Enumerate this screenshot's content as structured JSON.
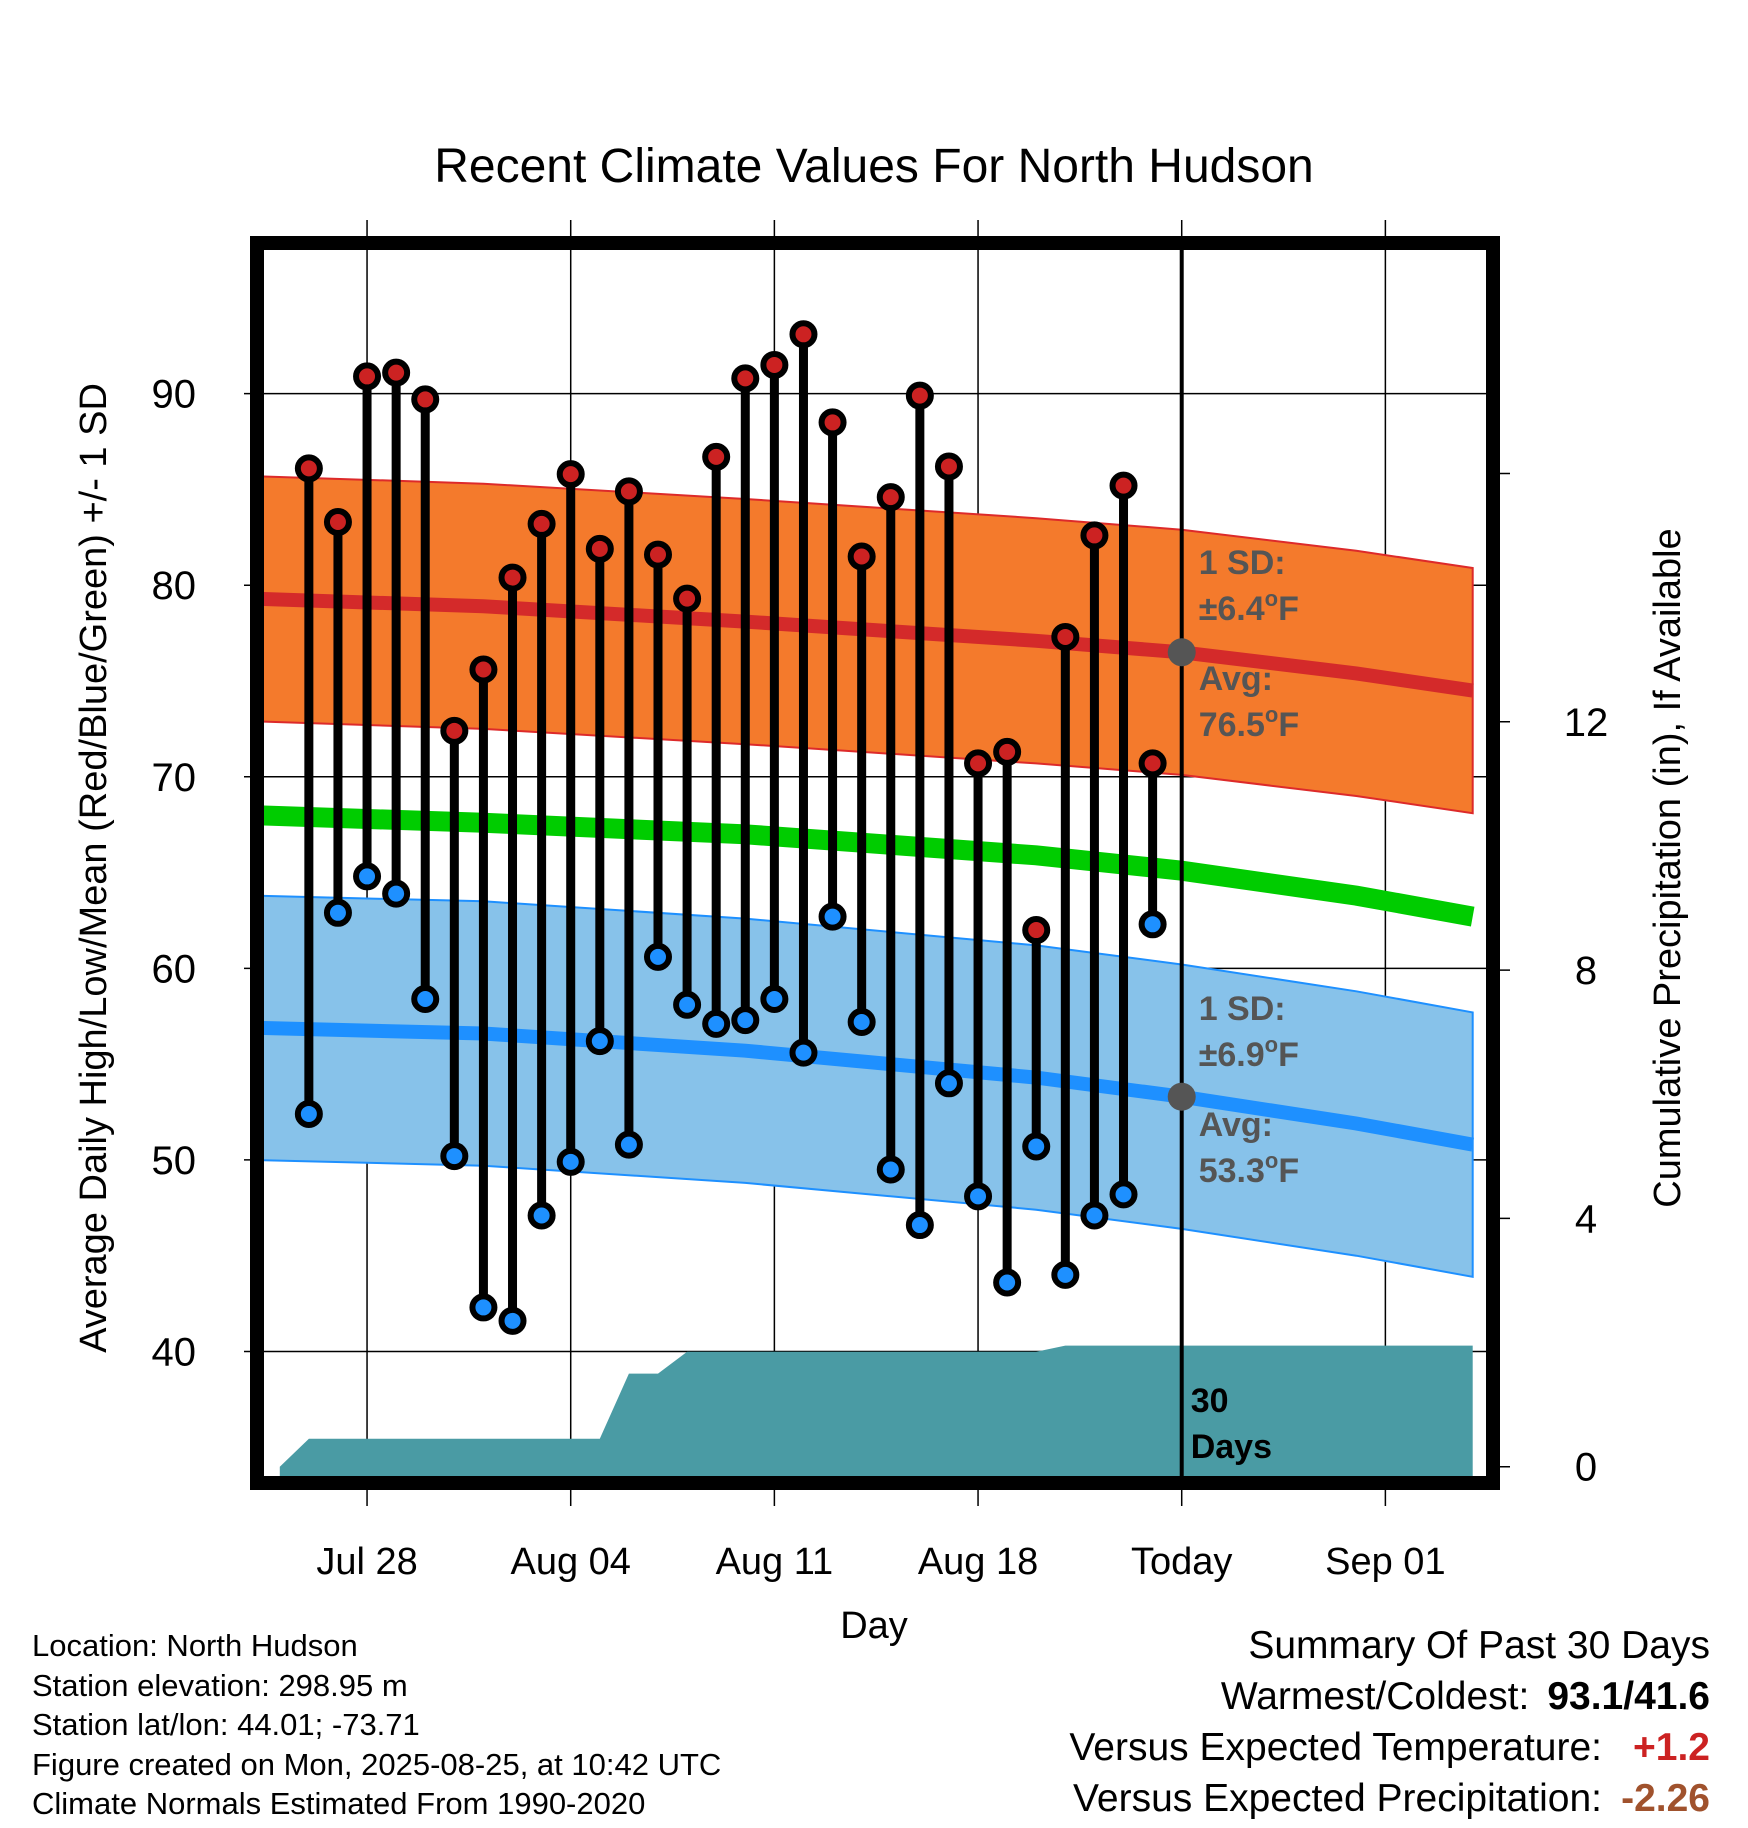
{
  "chart_data": {
    "type": "line",
    "title": "Recent Climate Values For North Hudson",
    "xlabel": "Day",
    "ylabel": "Average Daily High/Low/Mean (Red/Blue/Green) +/- 1 SD",
    "y2label": "Cumulative Precipitation (in), If Available",
    "ylim": [
      33.5,
      97.5
    ],
    "y2lim": [
      -0.15,
      19.6
    ],
    "xlim": [
      "2025-07-24T11:00",
      "2025-09-04T11:00"
    ],
    "yticks": [
      40,
      50,
      60,
      70,
      80,
      90
    ],
    "y2ticks": [
      0,
      4,
      8,
      12
    ],
    "xticks": [
      {
        "date": "2025-07-28",
        "label": "Jul 28"
      },
      {
        "date": "2025-08-04",
        "label": "Aug 04"
      },
      {
        "date": "2025-08-11",
        "label": "Aug 11"
      },
      {
        "date": "2025-08-18",
        "label": "Aug 18"
      },
      {
        "date": "2025-08-25",
        "label": "Today"
      },
      {
        "date": "2025-09-01",
        "label": "Sep 01"
      }
    ],
    "today": "2025-08-25",
    "grid": true,
    "series": [
      {
        "name": "High",
        "color": "#cc2222",
        "dates": [
          "2025-07-26",
          "2025-07-27",
          "2025-07-28",
          "2025-07-29",
          "2025-07-30",
          "2025-07-31",
          "2025-08-01",
          "2025-08-02",
          "2025-08-03",
          "2025-08-04",
          "2025-08-05",
          "2025-08-06",
          "2025-08-07",
          "2025-08-08",
          "2025-08-09",
          "2025-08-10",
          "2025-08-11",
          "2025-08-12",
          "2025-08-13",
          "2025-08-14",
          "2025-08-15",
          "2025-08-16",
          "2025-08-17",
          "2025-08-18",
          "2025-08-19",
          "2025-08-20",
          "2025-08-21",
          "2025-08-22",
          "2025-08-23",
          "2025-08-24"
        ],
        "values": [
          86.1,
          83.3,
          90.9,
          91.1,
          89.7,
          72.4,
          75.6,
          80.4,
          83.2,
          85.8,
          81.9,
          84.9,
          81.6,
          79.3,
          86.7,
          90.8,
          91.5,
          93.1,
          88.5,
          81.5,
          84.6,
          89.9,
          86.2,
          70.7,
          71.3,
          62.0,
          77.3,
          82.6,
          85.2,
          70.7
        ]
      },
      {
        "name": "Low",
        "color": "#1e90ff",
        "dates": [
          "2025-07-26",
          "2025-07-27",
          "2025-07-28",
          "2025-07-29",
          "2025-07-30",
          "2025-07-31",
          "2025-08-01",
          "2025-08-02",
          "2025-08-03",
          "2025-08-04",
          "2025-08-05",
          "2025-08-06",
          "2025-08-07",
          "2025-08-08",
          "2025-08-09",
          "2025-08-10",
          "2025-08-11",
          "2025-08-12",
          "2025-08-13",
          "2025-08-14",
          "2025-08-15",
          "2025-08-16",
          "2025-08-17",
          "2025-08-18",
          "2025-08-19",
          "2025-08-20",
          "2025-08-21",
          "2025-08-22",
          "2025-08-23",
          "2025-08-24"
        ],
        "values": [
          52.4,
          62.9,
          64.8,
          63.9,
          58.4,
          50.2,
          42.3,
          41.6,
          47.1,
          49.9,
          56.2,
          50.8,
          60.6,
          58.1,
          57.1,
          57.3,
          58.4,
          55.6,
          62.7,
          57.2,
          49.5,
          46.6,
          54.0,
          48.1,
          43.6,
          50.7,
          44.0,
          47.1,
          48.2,
          62.3
        ]
      },
      {
        "name": "Normal High",
        "color": "#cc2222",
        "dates": [
          "2025-07-24",
          "2025-08-01",
          "2025-08-10",
          "2025-08-20",
          "2025-08-25",
          "2025-08-31",
          "2025-09-04"
        ],
        "values": [
          79.3,
          78.9,
          78.1,
          77.1,
          76.5,
          75.4,
          74.5
        ]
      },
      {
        "name": "Normal High SD",
        "value": 6.4,
        "color": "#f47a2c"
      },
      {
        "name": "Normal Mean",
        "color": "#00cc00",
        "dates": [
          "2025-07-24",
          "2025-08-01",
          "2025-08-10",
          "2025-08-20",
          "2025-08-25",
          "2025-08-31",
          "2025-09-04"
        ],
        "values": [
          68.0,
          67.6,
          67.0,
          65.9,
          65.1,
          63.8,
          62.7
        ]
      },
      {
        "name": "Normal Low",
        "color": "#1e90ff",
        "dates": [
          "2025-07-24",
          "2025-08-01",
          "2025-08-10",
          "2025-08-20",
          "2025-08-25",
          "2025-08-31",
          "2025-09-04"
        ],
        "values": [
          56.9,
          56.6,
          55.7,
          54.3,
          53.3,
          51.9,
          50.8
        ]
      },
      {
        "name": "Normal Low SD",
        "value": 6.9,
        "color": "#87c2ea"
      },
      {
        "name": "Cumulative Precipitation",
        "color": "#4a9ba4",
        "dates": [
          "2025-07-25",
          "2025-07-26",
          "2025-08-05",
          "2025-08-06",
          "2025-08-07",
          "2025-08-08",
          "2025-08-20",
          "2025-08-21",
          "2025-08-24",
          "2025-08-25",
          "2025-09-04"
        ],
        "values": [
          0.0,
          0.45,
          0.45,
          1.5,
          1.5,
          1.85,
          1.85,
          1.95,
          1.95,
          1.95,
          1.95
        ]
      }
    ],
    "annotations": {
      "high_sd": {
        "line1": "1 SD:",
        "line2": "±6.4",
        "unit": "F"
      },
      "high_avg": {
        "line1": "Avg:",
        "line2": "76.5",
        "unit": "F"
      },
      "low_sd": {
        "line1": "1 SD:",
        "line2": "±6.9",
        "unit": "F"
      },
      "low_avg": {
        "line1": "Avg:",
        "line2": "53.3",
        "unit": "F"
      },
      "deg": "o",
      "days_line1": "30",
      "days_line2": "Days"
    }
  },
  "footer": {
    "location": "Location: North Hudson",
    "elevation": "Station elevation: 298.95 m",
    "latlon": "Station lat/lon: 44.01; -73.71",
    "created": "Figure created on Mon, 2025-08-25, at 10:42 UTC",
    "normals": "Climate Normals Estimated From 1990-2020"
  },
  "summary": {
    "heading": "Summary Of Past 30 Days",
    "warmest_label": "Warmest/Coldest:",
    "warmest_value": "93.1/41.6",
    "temp_label": "Versus Expected Temperature:",
    "temp_value": "+1.2",
    "temp_color": "#cc2222",
    "precip_label": "Versus Expected Precipitation:",
    "precip_value": "-2.26",
    "precip_color": "#a0522d"
  }
}
